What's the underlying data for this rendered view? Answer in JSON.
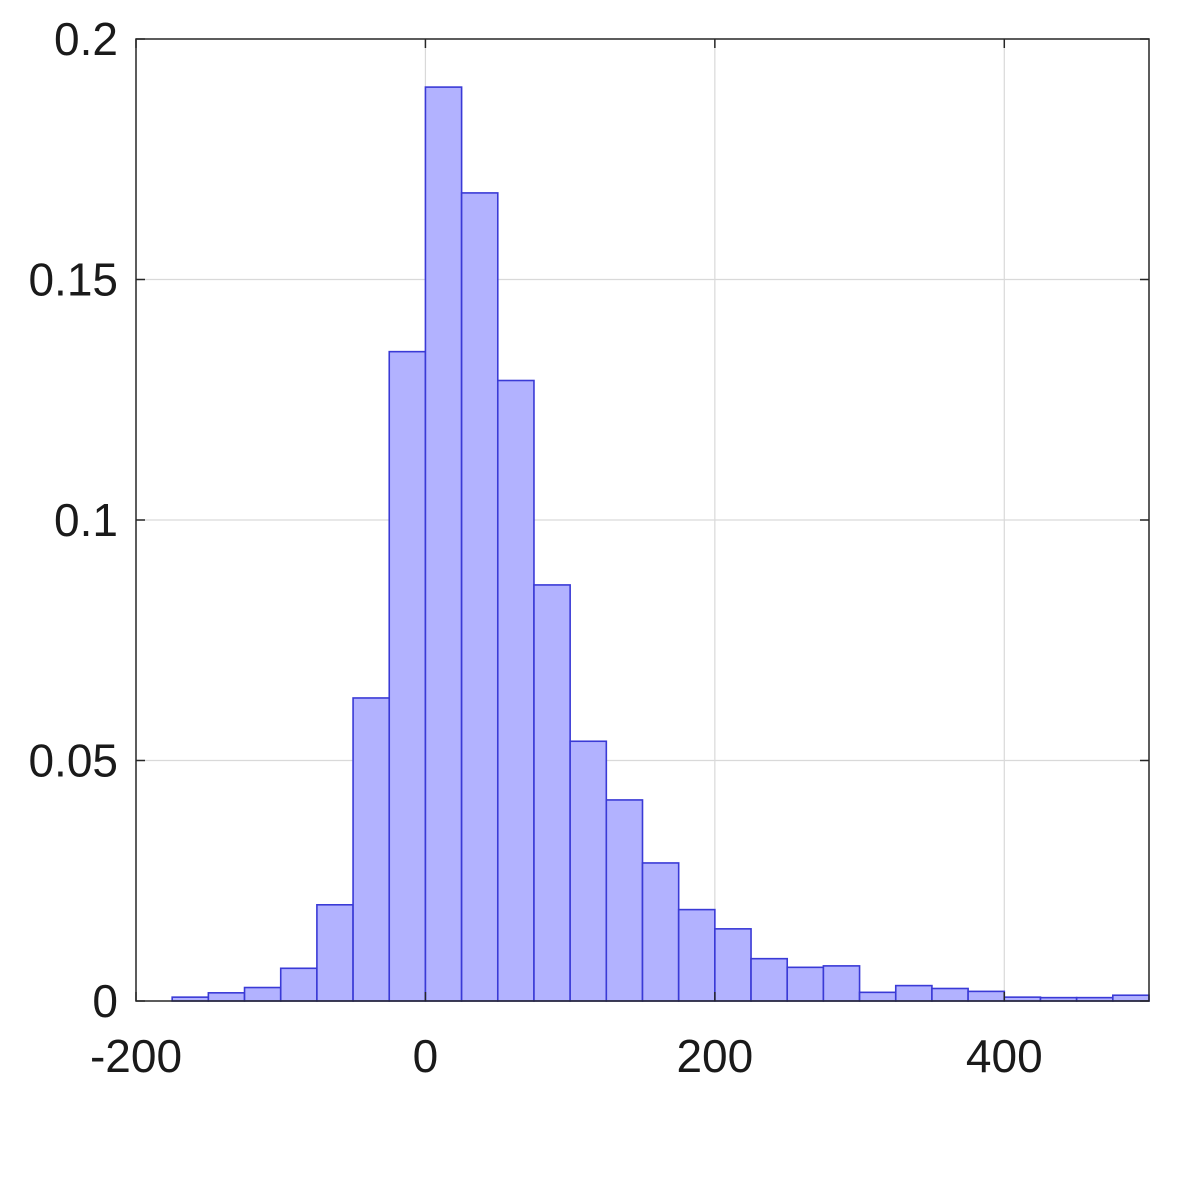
{
  "chart_data": {
    "type": "bar",
    "title": "",
    "xlabel": "",
    "ylabel": "",
    "xlim": [
      -200,
      500
    ],
    "ylim": [
      0,
      0.2
    ],
    "grid": true,
    "bin_edges": [
      -175,
      -150,
      -125,
      -100,
      -75,
      -50,
      -25,
      0,
      25,
      50,
      75,
      100,
      125,
      150,
      175,
      200,
      225,
      250,
      275,
      300,
      325,
      350,
      375,
      400,
      425,
      450,
      475,
      500
    ],
    "values": [
      0.0008,
      0.0017,
      0.0028,
      0.0068,
      0.02,
      0.063,
      0.135,
      0.19,
      0.168,
      0.129,
      0.0865,
      0.054,
      0.0418,
      0.0287,
      0.019,
      0.015,
      0.0088,
      0.007,
      0.0073,
      0.0018,
      0.0032,
      0.0026,
      0.002,
      0.0008,
      0.0007,
      0.0007,
      0.0012
    ],
    "x_ticks": [
      -200,
      0,
      200,
      400
    ],
    "x_tick_labels": [
      "-200",
      "0",
      "200",
      "400"
    ],
    "y_ticks": [
      0,
      0.05,
      0.1,
      0.15,
      0.2
    ],
    "y_tick_labels": [
      "0",
      "0.05",
      "0.1",
      "0.15",
      "0.2"
    ],
    "colors": {
      "bar_fill": "#b2b2ff",
      "bar_edge": "#3a3ad6"
    }
  }
}
